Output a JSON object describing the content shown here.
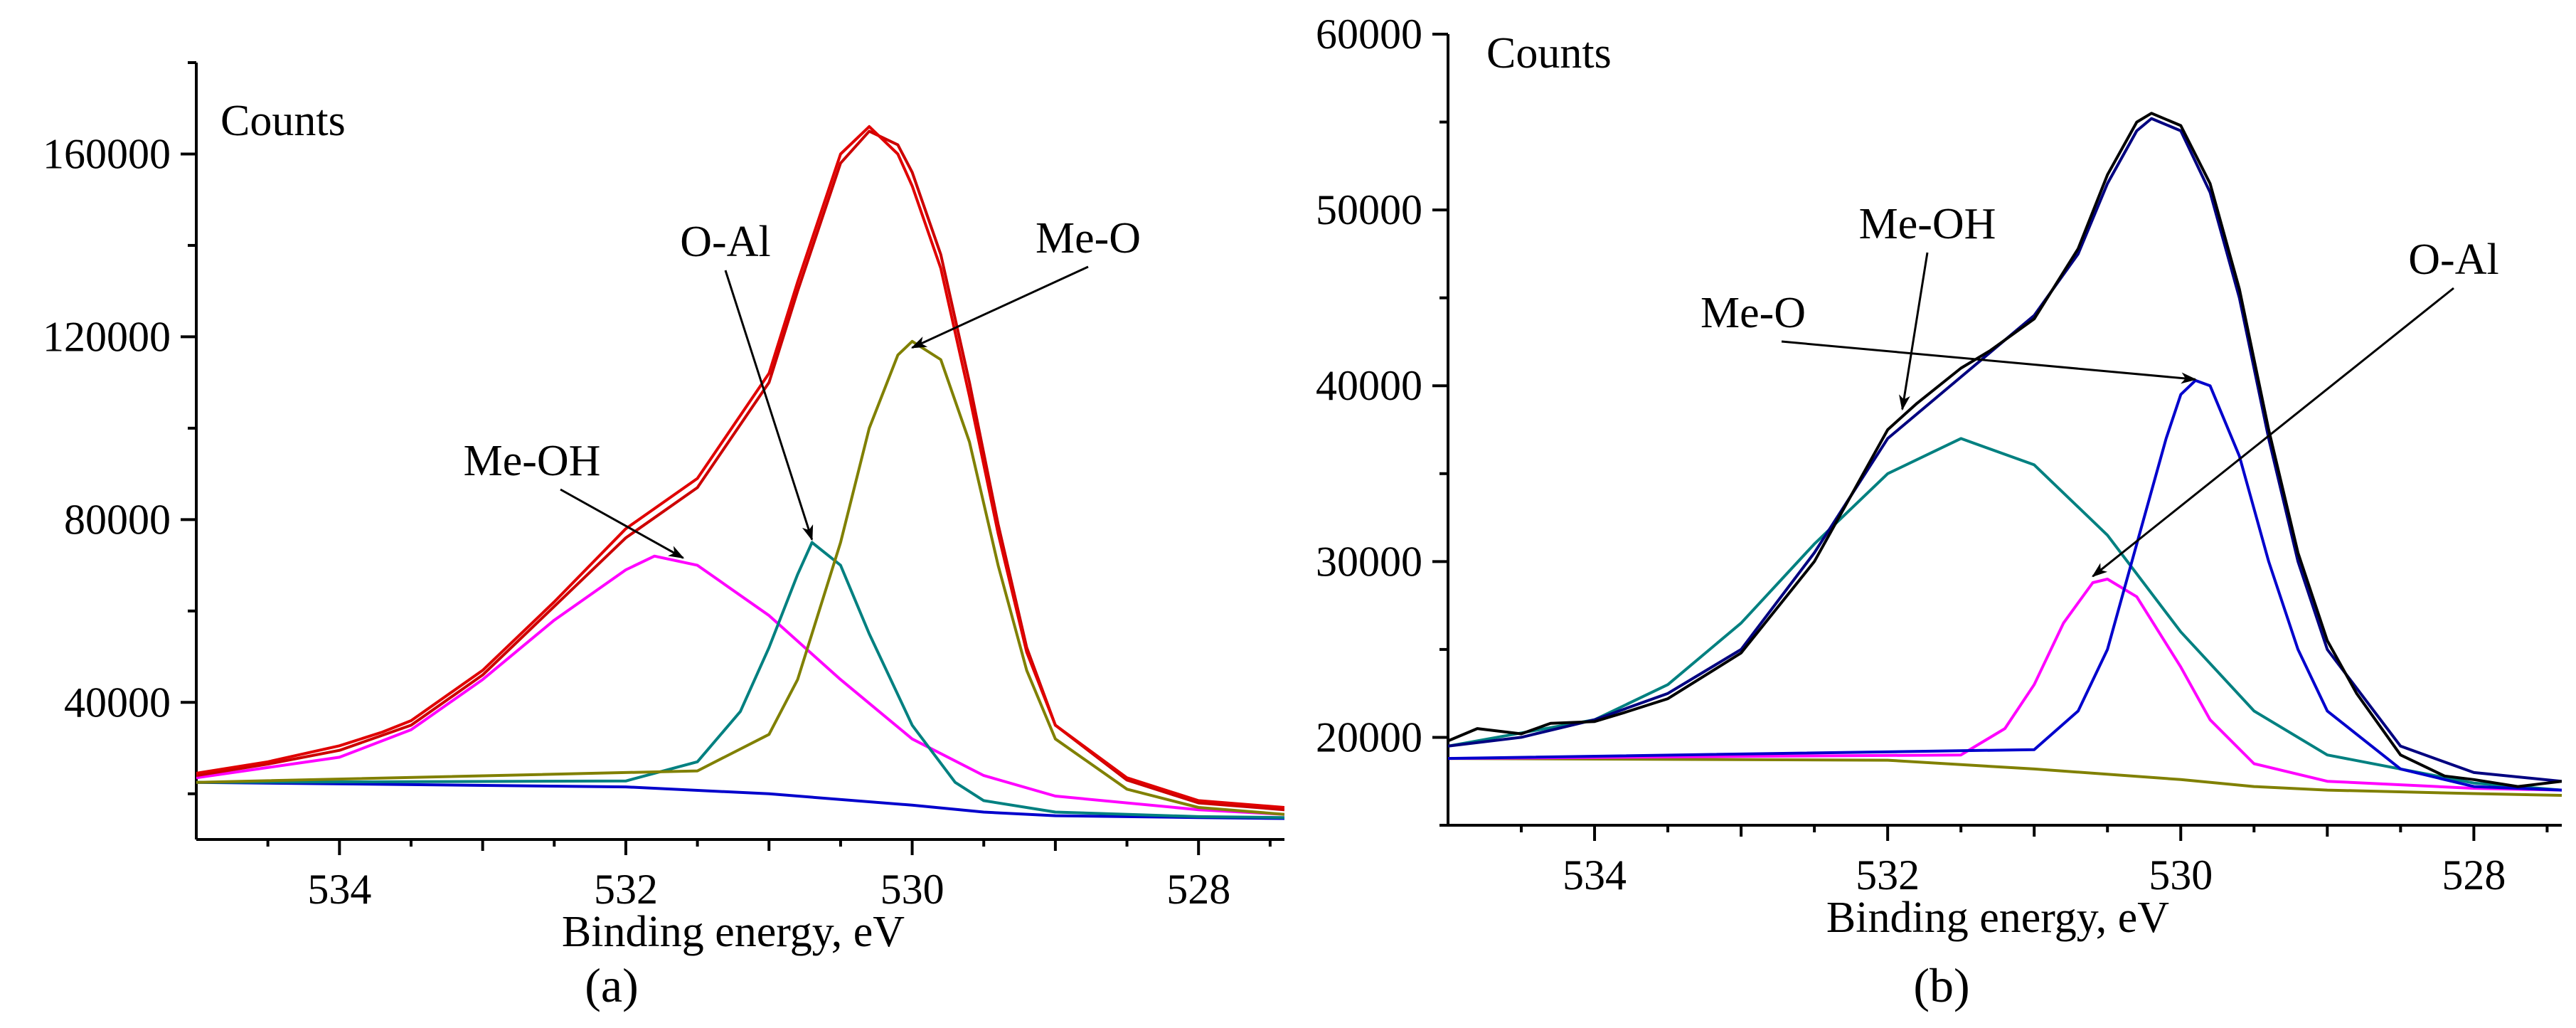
{
  "chart_data": [
    {
      "type": "line",
      "panel_label": "(a)",
      "ylabel": "Counts",
      "xlabel": "Binding energy, eV",
      "xlim": [
        535,
        527.4
      ],
      "x_reversed": true,
      "ylim": [
        10000,
        180000
      ],
      "xticks": [
        534,
        532,
        530,
        528
      ],
      "yticks": [
        40000,
        80000,
        120000,
        160000
      ],
      "grid": false,
      "annotations": [
        {
          "text": "O-Al",
          "target_x": 530.7,
          "target_y": 75000
        },
        {
          "text": "Me-O",
          "target_x": 530.0,
          "target_y": 117000
        },
        {
          "text": "Me-OH",
          "target_x": 531.6,
          "target_y": 71000
        }
      ],
      "series": [
        {
          "role": "background",
          "color": "#0000cc",
          "x": [
            535,
            532,
            531,
            530,
            529.5,
            529,
            528,
            527.4
          ],
          "y": [
            22500,
            21500,
            20000,
            17500,
            16000,
            15200,
            14800,
            14600
          ]
        },
        {
          "role": "component",
          "color": "#ff00ff",
          "x": [
            535,
            534,
            533.5,
            533,
            532.5,
            532,
            531.8,
            531.5,
            531,
            530.5,
            530,
            529.5,
            529,
            528,
            527.4
          ],
          "y": [
            23500,
            28000,
            34000,
            45000,
            58000,
            69000,
            72000,
            70000,
            59000,
            45000,
            32000,
            24000,
            19500,
            16500,
            15500
          ]
        },
        {
          "role": "component",
          "color": "#008080",
          "x": [
            535,
            532,
            531.5,
            531.2,
            531,
            530.8,
            530.7,
            530.5,
            530.3,
            530,
            529.7,
            529.5,
            529,
            528,
            527.4
          ],
          "y": [
            22500,
            22800,
            27000,
            38000,
            52000,
            68000,
            75000,
            70000,
            55000,
            35000,
            22500,
            18500,
            16000,
            15000,
            14800
          ]
        },
        {
          "role": "component",
          "color": "#808000",
          "x": [
            535,
            531.5,
            531,
            530.8,
            530.5,
            530.3,
            530.1,
            530,
            529.8,
            529.6,
            529.4,
            529.2,
            529,
            528.5,
            528,
            527.4
          ],
          "y": [
            22500,
            25000,
            33000,
            45000,
            75000,
            100000,
            116000,
            119000,
            115000,
            97000,
            70000,
            47000,
            32000,
            21000,
            17000,
            15500
          ]
        },
        {
          "role": "envelope",
          "color": "#cc0000",
          "x": [
            535,
            534.5,
            534,
            533.5,
            533,
            532.5,
            532,
            531.5,
            531,
            530.8,
            530.5,
            530.3,
            530.1,
            530,
            529.8,
            529.6,
            529.4,
            529.2,
            529,
            528.5,
            528,
            527.4
          ],
          "y": [
            24000,
            26500,
            29500,
            35000,
            46000,
            61000,
            76000,
            87000,
            110000,
            130000,
            158000,
            165000,
            162000,
            156000,
            138000,
            110000,
            79000,
            52000,
            35000,
            23000,
            18000,
            16500
          ]
        },
        {
          "role": "measured",
          "color": "#e00000",
          "x": [
            535,
            534.5,
            534,
            533.7,
            533.5,
            533,
            532.5,
            532,
            531.5,
            531,
            530.8,
            530.5,
            530.3,
            530.1,
            530,
            529.8,
            529.6,
            529.4,
            529.2,
            529,
            528.5,
            528,
            527.4
          ],
          "y": [
            24500,
            27000,
            30500,
            33500,
            36000,
            47000,
            62000,
            78000,
            89000,
            112000,
            132000,
            160000,
            166000,
            160000,
            153000,
            135000,
            107000,
            77000,
            51000,
            35000,
            23500,
            18500,
            17000
          ]
        }
      ]
    },
    {
      "type": "line",
      "panel_label": "(b)",
      "ylabel": "Counts",
      "xlabel": "Binding energy, eV",
      "xlim": [
        535,
        527.4
      ],
      "x_reversed": true,
      "ylim": [
        15000,
        60000
      ],
      "xticks": [
        534,
        532,
        530,
        528
      ],
      "yticks": [
        20000,
        30000,
        40000,
        50000,
        60000
      ],
      "grid": false,
      "annotations": [
        {
          "text": "Me-OH",
          "target_x": 531.9,
          "target_y": 38500
        },
        {
          "text": "O-Al",
          "target_x": 530.6,
          "target_y": 29000
        },
        {
          "text": "Me-O",
          "target_x": 529.9,
          "target_y": 40200
        }
      ],
      "series": [
        {
          "role": "background",
          "color": "#808000",
          "x": [
            535,
            532,
            531,
            530,
            529.5,
            529,
            528,
            527.4
          ],
          "y": [
            18800,
            18700,
            18200,
            17600,
            17200,
            17000,
            16800,
            16700
          ]
        },
        {
          "role": "component",
          "color": "#008080",
          "x": [
            535,
            534,
            533.5,
            533,
            532.5,
            532,
            531.5,
            531,
            530.5,
            530,
            529.5,
            529,
            528,
            527.4
          ],
          "y": [
            19500,
            21000,
            23000,
            26500,
            31000,
            35000,
            37000,
            35500,
            31500,
            26000,
            21500,
            19000,
            17400,
            17000
          ]
        },
        {
          "role": "component",
          "color": "#ff00ff",
          "x": [
            535,
            531.5,
            531.2,
            531,
            530.8,
            530.6,
            530.5,
            530.3,
            530,
            529.8,
            529.5,
            529,
            528,
            527.4
          ],
          "y": [
            18800,
            19000,
            20500,
            23000,
            26500,
            28800,
            29000,
            28000,
            24000,
            21000,
            18500,
            17500,
            17100,
            17000
          ]
        },
        {
          "role": "component",
          "color": "#0000cc",
          "x": [
            535,
            531,
            530.7,
            530.5,
            530.3,
            530.1,
            530,
            529.9,
            529.8,
            529.6,
            529.4,
            529.2,
            529,
            528.5,
            528,
            527.4
          ],
          "y": [
            18800,
            19300,
            21500,
            25000,
            31000,
            37000,
            39500,
            40300,
            40000,
            36000,
            30000,
            25000,
            21500,
            18200,
            17200,
            17000
          ]
        },
        {
          "role": "envelope",
          "color": "#000080",
          "x": [
            535,
            534.5,
            534,
            533.5,
            533,
            532.5,
            532,
            531.5,
            531,
            530.7,
            530.5,
            530.3,
            530.2,
            530,
            529.8,
            529.6,
            529.4,
            529.2,
            529,
            528.5,
            528,
            527.4
          ],
          "y": [
            19500,
            20000,
            21000,
            22500,
            25000,
            30500,
            37000,
            40500,
            44000,
            47500,
            51500,
            54500,
            55200,
            54500,
            51000,
            45000,
            37000,
            30000,
            25000,
            19500,
            18000,
            17500
          ]
        },
        {
          "role": "measured",
          "color": "#000000",
          "x": [
            535,
            534.8,
            534.5,
            534.3,
            534,
            533.8,
            533.5,
            533,
            532.5,
            532,
            531.8,
            531.5,
            531.3,
            531,
            530.7,
            530.5,
            530.3,
            530.2,
            530,
            529.8,
            529.6,
            529.4,
            529.2,
            529,
            528.8,
            528.5,
            528.2,
            528,
            527.7,
            527.4
          ],
          "y": [
            19800,
            20500,
            20200,
            20800,
            20900,
            21400,
            22200,
            24800,
            30000,
            37500,
            39000,
            41000,
            42000,
            43800,
            47800,
            52000,
            55000,
            55500,
            54800,
            51500,
            45500,
            37500,
            30500,
            25500,
            22500,
            19000,
            17800,
            17600,
            17200,
            17500
          ]
        }
      ]
    }
  ]
}
